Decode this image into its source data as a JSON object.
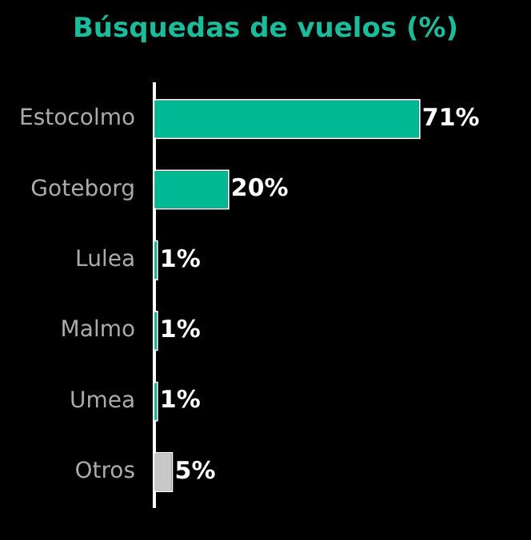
{
  "chart_data": {
    "type": "bar",
    "orientation": "horizontal",
    "title": "Búsquedas de vuelos (%)",
    "categories": [
      "Estocolmo",
      "Goteborg",
      "Lulea",
      "Malmo",
      "Umea",
      "Otros"
    ],
    "values": [
      71,
      20,
      1,
      1,
      1,
      5
    ],
    "colors": [
      "#00b894",
      "#00b894",
      "#00b894",
      "#00b894",
      "#00b894",
      "#c8c8c8"
    ],
    "tick_labels": "y",
    "grid": false,
    "legend": false,
    "value_labels": [
      "71%",
      "20%",
      "1%",
      "1%",
      "1%",
      "5%"
    ]
  }
}
